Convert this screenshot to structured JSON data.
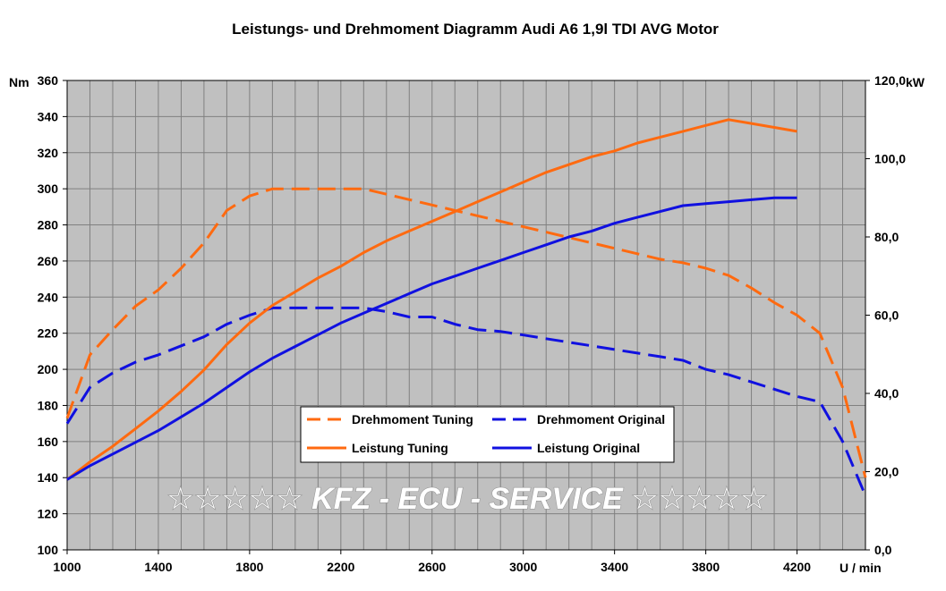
{
  "chart_data": {
    "type": "line",
    "title": "Leistungs- und Drehmoment Diagramm Audi A6 1,9l TDI AVG Motor",
    "xlabel": "U / min",
    "ylabel_left": "Nm",
    "ylabel_right": "kW",
    "xlim": [
      1000,
      4500
    ],
    "ylim_left": [
      100,
      360
    ],
    "ylim_right": [
      0,
      120
    ],
    "x_ticks": [
      "1000",
      "1400",
      "1800",
      "2200",
      "2600",
      "3000",
      "3400",
      "3800",
      "4200"
    ],
    "y_left_ticks": [
      "100",
      "120",
      "140",
      "160",
      "180",
      "200",
      "220",
      "240",
      "260",
      "280",
      "300",
      "320",
      "340",
      "360"
    ],
    "y_right_ticks": [
      "0,0",
      "20,0",
      "40,0",
      "60,0",
      "80,0",
      "100,0",
      "120,0"
    ],
    "grid": true,
    "legend_position": "center",
    "watermark": "☆☆☆☆☆ KFZ - ECU - SERVICE ☆☆☆☆☆",
    "colors": {
      "tuning": "#ff6a10",
      "original": "#1010e0",
      "plot_bg": "#c0c0c0",
      "grid": "#808080"
    },
    "series": [
      {
        "name": "Drehmoment Tuning",
        "axis": "left",
        "dash": "dashed",
        "color": "#ff6a10",
        "x": [
          1000,
          1100,
          1200,
          1300,
          1400,
          1500,
          1600,
          1700,
          1800,
          1900,
          2000,
          2100,
          2200,
          2300,
          2400,
          2500,
          2600,
          2700,
          2800,
          2900,
          3000,
          3100,
          3200,
          3300,
          3400,
          3500,
          3600,
          3700,
          3800,
          3900,
          4000,
          4100,
          4200,
          4300,
          4400,
          4500
        ],
        "values": [
          173,
          208,
          222,
          235,
          244,
          256,
          270,
          288,
          296,
          300,
          300,
          300,
          300,
          300,
          297,
          294,
          291,
          288,
          285,
          282,
          279,
          276,
          273,
          270,
          267,
          264,
          261,
          259,
          256,
          252,
          245,
          237,
          230,
          220,
          190,
          140
        ]
      },
      {
        "name": "Drehmoment Original",
        "axis": "left",
        "dash": "dashed",
        "color": "#1010e0",
        "x": [
          1000,
          1100,
          1200,
          1300,
          1400,
          1500,
          1600,
          1700,
          1800,
          1900,
          2000,
          2100,
          2200,
          2300,
          2400,
          2500,
          2600,
          2700,
          2800,
          2900,
          3000,
          3100,
          3200,
          3300,
          3400,
          3500,
          3600,
          3700,
          3800,
          3900,
          4000,
          4100,
          4200,
          4300,
          4400,
          4500
        ],
        "values": [
          170,
          190,
          198,
          204,
          208,
          213,
          218,
          225,
          230,
          234,
          234,
          234,
          234,
          234,
          232,
          229,
          229,
          225,
          222,
          221,
          219,
          217,
          215,
          213,
          211,
          209,
          207,
          205,
          200,
          197,
          193,
          189,
          185,
          182,
          160,
          130
        ]
      },
      {
        "name": "Leistung Tuning",
        "axis": "right",
        "dash": "solid",
        "color": "#ff6a10",
        "x": [
          1000,
          1100,
          1200,
          1300,
          1400,
          1500,
          1600,
          1700,
          1800,
          1900,
          2000,
          2100,
          2200,
          2300,
          2400,
          2500,
          2600,
          2700,
          2800,
          2900,
          3000,
          3100,
          3200,
          3300,
          3400,
          3500,
          3600,
          3700,
          3800,
          3900,
          4000,
          4100,
          4200
        ],
        "values": [
          18,
          22.5,
          26.5,
          31,
          35.5,
          40.5,
          46,
          52.5,
          58,
          62.5,
          66,
          69.5,
          72.5,
          76,
          79,
          81.5,
          84,
          86.5,
          89,
          91.5,
          94,
          96.5,
          98.5,
          100.5,
          102,
          104,
          105.5,
          107,
          108.5,
          110,
          109,
          108,
          107
        ]
      },
      {
        "name": "Leistung Original",
        "axis": "right",
        "dash": "solid",
        "color": "#1010e0",
        "x": [
          1000,
          1100,
          1200,
          1300,
          1400,
          1500,
          1600,
          1700,
          1800,
          1900,
          2000,
          2100,
          2200,
          2300,
          2400,
          2500,
          2600,
          2700,
          2800,
          2900,
          3000,
          3100,
          3200,
          3300,
          3400,
          3500,
          3600,
          3700,
          3800,
          3900,
          4000,
          4100,
          4200
        ],
        "values": [
          18,
          21.5,
          24.5,
          27.5,
          30.5,
          34,
          37.5,
          41.5,
          45.5,
          49,
          52,
          55,
          58,
          60.5,
          63,
          65.5,
          68,
          70,
          72,
          74,
          76,
          78,
          80,
          81.5,
          83.5,
          85,
          86.5,
          88,
          88.5,
          89,
          89.5,
          90,
          90
        ]
      }
    ]
  }
}
